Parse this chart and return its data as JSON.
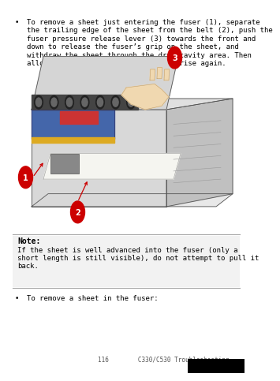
{
  "bg_color": "#ffffff",
  "page_width": 3.0,
  "page_height": 4.64,
  "bullet_text_1": "To remove a sheet just entering the fuser (1), separate\nthe trailing edge of the sheet from the belt (2), push the\nfuser pressure release lever (3) towards the front and\ndown to release the fuser’s grip on the sheet, and\nwithdraw the sheet through the drum cavity area. Then\nallow the pressure release lever to rise again.",
  "note_title": "Note:",
  "note_body": "If the sheet is well advanced into the fuser (only a\nshort length is still visible), do not attempt to pull it\nback.",
  "bullet_text_2": "To remove a sheet in the fuser:",
  "footer_text": "116        C330/C530 Troubleshooting",
  "label_color": "#cc0000",
  "text_color": "#000000",
  "separator_color": "#aaaaaa",
  "font_size_body": 6.5,
  "font_size_note_title": 7.0,
  "font_size_footer": 5.5
}
